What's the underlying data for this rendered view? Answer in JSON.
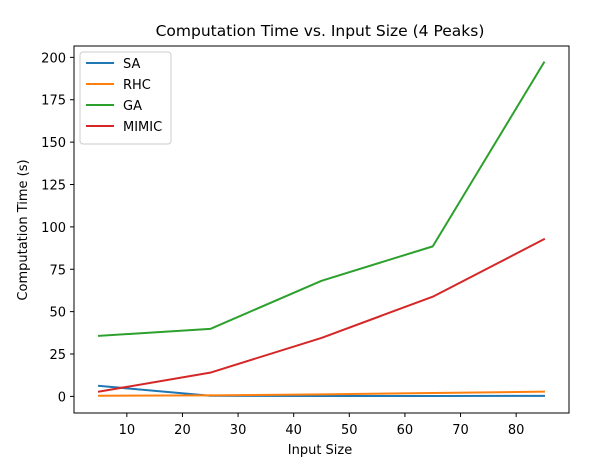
{
  "chart_data": {
    "type": "line",
    "title": "Computation Time vs. Input Size (4 Peaks)",
    "xlabel": "Input Size",
    "ylabel": "Computation Time (s)",
    "x": [
      5,
      25,
      45,
      65,
      85
    ],
    "xlim": [
      0.5,
      89.5
    ],
    "ylim": [
      -9.8,
      206.7
    ],
    "xticks": [
      10,
      20,
      30,
      40,
      50,
      60,
      70,
      80
    ],
    "yticks": [
      0,
      25,
      50,
      75,
      100,
      125,
      150,
      175,
      200
    ],
    "grid": false,
    "legend_position": "top-left",
    "series": [
      {
        "name": "SA",
        "color": "#1f77b4",
        "values": [
          6.2,
          0.4,
          0.2,
          0.2,
          0.3
        ]
      },
      {
        "name": "RHC",
        "color": "#ff7f0e",
        "values": [
          0.4,
          0.6,
          1.2,
          2.0,
          2.8
        ]
      },
      {
        "name": "GA",
        "color": "#2ca02c",
        "values": [
          35.7,
          39.8,
          68.2,
          88.5,
          197.0
        ]
      },
      {
        "name": "MIMIC",
        "color": "#d62728",
        "values": [
          2.8,
          14.0,
          34.5,
          58.8,
          92.7
        ]
      }
    ]
  }
}
